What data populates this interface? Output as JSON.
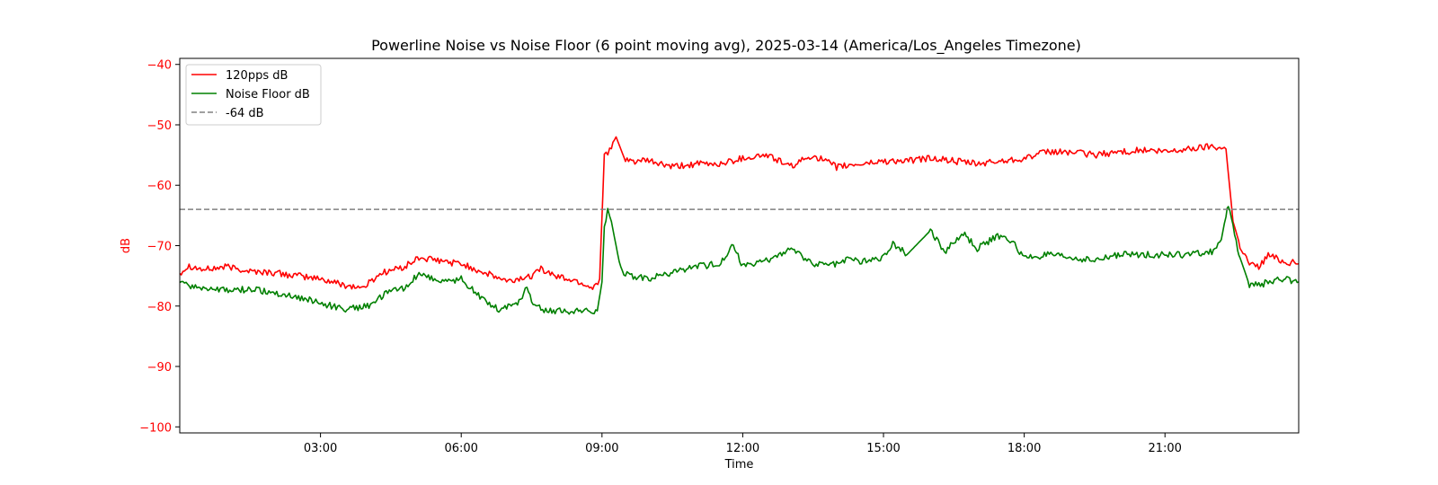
{
  "chart_data": {
    "type": "line",
    "title": "Powerline Noise vs Noise Floor (6 point moving avg), 2025-03-14 (America/Los_Angeles Timezone)",
    "xlabel": "Time",
    "ylabel": "dB",
    "xlim_hours": [
      0,
      23.85
    ],
    "ylim": [
      -101,
      -39
    ],
    "x_ticks": [
      {
        "label": "03:00",
        "hour": 3
      },
      {
        "label": "06:00",
        "hour": 6
      },
      {
        "label": "09:00",
        "hour": 9
      },
      {
        "label": "12:00",
        "hour": 12
      },
      {
        "label": "15:00",
        "hour": 15
      },
      {
        "label": "18:00",
        "hour": 18
      },
      {
        "label": "21:00",
        "hour": 21
      }
    ],
    "y_ticks": [
      {
        "label": "−40",
        "value": -40
      },
      {
        "label": "−50",
        "value": -50
      },
      {
        "label": "−60",
        "value": -60
      },
      {
        "label": "−70",
        "value": -70
      },
      {
        "label": "−80",
        "value": -80
      },
      {
        "label": "−90",
        "value": -90
      },
      {
        "label": "−100",
        "value": -100
      }
    ],
    "legend_position": "upper-left",
    "series": [
      {
        "name": "120pps dB",
        "color": "#ff0000",
        "x": [
          0,
          0.2,
          0.5,
          1,
          1.5,
          2,
          2.5,
          3,
          3.5,
          3.9,
          4.3,
          4.8,
          5.1,
          5.5,
          6,
          6.5,
          7,
          7.5,
          7.6,
          8,
          8.5,
          8.8,
          8.95,
          9.05,
          9.2,
          9.3,
          9.5,
          9.8,
          10,
          10.5,
          11,
          11.5,
          12,
          12.5,
          12.8,
          13,
          13.5,
          14,
          14.5,
          15,
          15.5,
          16,
          16.5,
          17,
          17.5,
          18,
          18.5,
          19,
          19.5,
          20,
          20.5,
          21,
          21.5,
          22,
          22.3,
          22.45,
          22.6,
          22.8,
          23,
          23.2,
          23.5,
          23.85
        ],
        "values": [
          -74.5,
          -73.3,
          -74,
          -73.5,
          -74.2,
          -74.5,
          -75,
          -75.5,
          -76.5,
          -77,
          -74.5,
          -73.5,
          -72,
          -72.5,
          -73,
          -74.5,
          -76,
          -75,
          -73.5,
          -75,
          -76,
          -77,
          -75.5,
          -55,
          -54,
          -52,
          -56,
          -56,
          -56,
          -57,
          -56.5,
          -56.5,
          -55.5,
          -55,
          -56,
          -57,
          -55,
          -57,
          -56.5,
          -56,
          -56,
          -55.5,
          -56,
          -56.5,
          -56,
          -55.5,
          -54.5,
          -54.5,
          -55,
          -54.5,
          -54.2,
          -54.5,
          -54,
          -53.5,
          -54,
          -66,
          -70,
          -73,
          -73.5,
          -71.5,
          -72.5,
          -73
        ]
      },
      {
        "name": "Noise Floor dB",
        "color": "#008000",
        "x": [
          0,
          0.5,
          1,
          1.5,
          2,
          2.5,
          3,
          3.5,
          4,
          4.5,
          4.8,
          5.1,
          5.4,
          5.7,
          6,
          6.4,
          6.8,
          7.2,
          7.4,
          7.5,
          7.7,
          8,
          8.5,
          8.9,
          9.0,
          9.05,
          9.12,
          9.2,
          9.4,
          9.6,
          10,
          10.5,
          11,
          11.5,
          11.8,
          12,
          12.5,
          13,
          13.5,
          14,
          14.3,
          14.5,
          15,
          15.2,
          15.5,
          16,
          16.3,
          16.7,
          17,
          17.4,
          17.7,
          18,
          18.5,
          19,
          19.5,
          20,
          20.5,
          21,
          21.5,
          22,
          22.2,
          22.3,
          22.35,
          22.45,
          22.55,
          22.6,
          22.8,
          23,
          23.5,
          23.85
        ],
        "values": [
          -76.3,
          -77,
          -77.5,
          -77.2,
          -77.8,
          -78.5,
          -79.5,
          -80.5,
          -80,
          -77.5,
          -77,
          -74.5,
          -75.5,
          -76,
          -75.5,
          -78.5,
          -80.5,
          -79.5,
          -77,
          -79,
          -80.5,
          -80.8,
          -80.8,
          -80.8,
          -76,
          -67,
          -64,
          -66,
          -74,
          -75,
          -75.5,
          -74.5,
          -73.5,
          -73,
          -70,
          -73.5,
          -72.5,
          -70.5,
          -73,
          -73,
          -72,
          -72.5,
          -72,
          -69.5,
          -71.5,
          -67.5,
          -71,
          -68,
          -70.5,
          -68.5,
          -69,
          -72,
          -71.5,
          -72,
          -72.5,
          -71.5,
          -71.5,
          -71.5,
          -71.5,
          -71,
          -69,
          -65,
          -63.5,
          -67,
          -70.5,
          -72,
          -76.5,
          -76.5,
          -75.5,
          -76
        ]
      },
      {
        "name": "-64 dB",
        "color": "#808080",
        "style": "dashed",
        "x": [
          0,
          23.85
        ],
        "values": [
          -64,
          -64
        ]
      }
    ]
  }
}
